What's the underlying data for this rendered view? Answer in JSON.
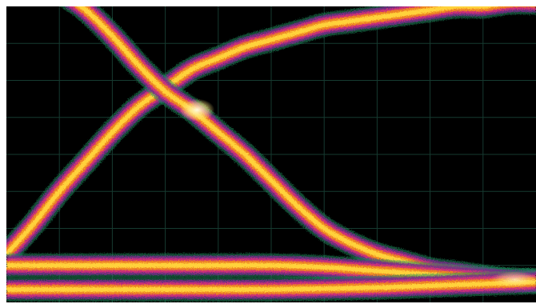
{
  "chart_data": {
    "type": "line",
    "style": "eye-diagram density plot (oscilloscope persistence display)",
    "grid": true,
    "grid_divisions": {
      "x": 10,
      "y": 8
    },
    "axes_labeled": false,
    "xlim": [
      0,
      10
    ],
    "ylim": [
      0,
      8
    ],
    "series": [
      {
        "shape": "rising edge",
        "x": [
          0.0,
          0.5,
          1.0,
          1.5,
          2.0,
          2.5,
          3.0,
          3.5,
          4.0,
          4.5,
          5.0,
          5.5,
          6.0,
          6.5,
          7.0,
          7.5,
          8.0,
          8.5,
          9.0,
          9.5,
          10.0
        ],
        "y": [
          1.3,
          2.1,
          3.0,
          3.8,
          4.6,
          5.3,
          5.8,
          6.3,
          6.6,
          6.9,
          7.1,
          7.3,
          7.5,
          7.6,
          7.7,
          7.8,
          7.9,
          8.0,
          8.0,
          8.1,
          8.1
        ]
      },
      {
        "shape": "falling edge",
        "x": [
          1.0,
          1.5,
          2.0,
          2.5,
          3.0,
          3.5,
          4.0,
          4.5,
          5.0,
          5.5,
          6.0,
          6.5,
          7.0,
          7.5,
          8.0,
          8.5,
          9.0,
          9.5,
          10.0
        ],
        "y": [
          8.4,
          7.9,
          7.2,
          6.4,
          5.7,
          5.2,
          4.6,
          4.0,
          3.3,
          2.6,
          2.0,
          1.6,
          1.3,
          1.1,
          0.9,
          0.8,
          0.7,
          0.6,
          0.6
        ]
      },
      {
        "shape": "low level, upper band",
        "x": [
          0.0,
          1.0,
          2.0,
          3.0,
          4.0,
          5.0,
          6.0,
          7.0,
          8.0,
          9.0,
          10.0
        ],
        "y": [
          1.0,
          1.0,
          1.0,
          1.0,
          1.0,
          1.0,
          0.95,
          0.85,
          0.75,
          0.65,
          0.6
        ]
      },
      {
        "shape": "low level, lower band",
        "x": [
          0.0,
          1.0,
          2.0,
          3.0,
          4.0,
          5.0,
          6.0,
          7.0,
          8.0,
          9.0,
          10.0
        ],
        "y": [
          0.35,
          0.35,
          0.35,
          0.35,
          0.35,
          0.35,
          0.37,
          0.4,
          0.45,
          0.5,
          0.55
        ]
      }
    ],
    "colors": {
      "background": "#000000",
      "grid": "#163a30",
      "halo": "#1d8a5c",
      "outer": "#7a2a8c",
      "mid": "#d4307a",
      "inner": "#f08a1e",
      "core": "#ffd23a",
      "hot": "#fff6c0"
    }
  }
}
